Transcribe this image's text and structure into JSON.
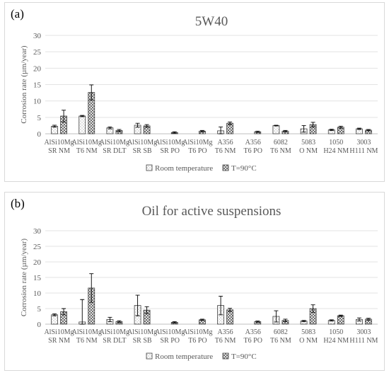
{
  "chart_data": [
    {
      "panel_label": "(a)",
      "type": "bar",
      "title": "5W40",
      "ylabel": "Corrosion rate (µm/year)",
      "ylim": [
        0,
        30
      ],
      "yticks": [
        0,
        5,
        10,
        15,
        20,
        25,
        30
      ],
      "grid": true,
      "legend_position": "bottom",
      "categories": [
        [
          "AlSi10Mg",
          "SR NM"
        ],
        [
          "AlSi10Mg",
          "T6 NM"
        ],
        [
          "AlSi10Mg",
          "SR DLT"
        ],
        [
          "AlSi10Mg",
          "SR SB"
        ],
        [
          "AlSi10Mg",
          "SR PO"
        ],
        [
          "AlSi10Mg",
          "T6 PO"
        ],
        [
          "A356",
          "T6 NM"
        ],
        [
          "A356",
          "T6 PO"
        ],
        [
          "6082",
          "T6 NM"
        ],
        [
          "5083",
          "O NM"
        ],
        [
          "1050",
          "H24 NM"
        ],
        [
          "3003",
          "H111 NM"
        ]
      ],
      "series": [
        {
          "name": "Room temperature",
          "pattern": "dots",
          "values": [
            2.3,
            5.4,
            1.8,
            2.6,
            0,
            0,
            0.9,
            0,
            2.5,
            1.5,
            1.2,
            1.5
          ],
          "errors": [
            0.3,
            0.2,
            0.3,
            0.6,
            0,
            0,
            1.2,
            0,
            0.1,
            1.0,
            0.2,
            0.2
          ]
        },
        {
          "name": "T=90°C",
          "pattern": "crosshatch",
          "values": [
            5.4,
            12.6,
            1.0,
            2.4,
            0.4,
            0.8,
            3.2,
            0.6,
            0.8,
            2.8,
            2.0,
            1.1
          ],
          "errors": [
            1.8,
            2.3,
            0.3,
            0.4,
            0.2,
            0.2,
            0.4,
            0.2,
            0.2,
            0.7,
            0.3,
            0.2
          ]
        }
      ]
    },
    {
      "panel_label": "(b)",
      "type": "bar",
      "title": "Oil for active suspensions",
      "ylabel": "Corrosion rate (µm/year)",
      "ylim": [
        0,
        30
      ],
      "yticks": [
        0,
        5,
        10,
        15,
        20,
        25,
        30
      ],
      "grid": true,
      "legend_position": "bottom",
      "categories": [
        [
          "AlSi10Mg",
          "SR NM"
        ],
        [
          "AlSi10Mg",
          "T6 NM"
        ],
        [
          "AlSi10Mg",
          "SR DLT"
        ],
        [
          "AlSi10Mg",
          "SR SB"
        ],
        [
          "AlSi10Mg",
          "SR PO"
        ],
        [
          "AlSi10Mg",
          "T6 PO"
        ],
        [
          "A356",
          "T6 NM"
        ],
        [
          "A356",
          "T6 PO"
        ],
        [
          "6082",
          "T6 NM"
        ],
        [
          "5083",
          "O NM"
        ],
        [
          "1050",
          "H24 NM"
        ],
        [
          "3003",
          "H111 NM"
        ]
      ],
      "series": [
        {
          "name": "Room temperature",
          "pattern": "dots",
          "values": [
            3.0,
            0.7,
            1.5,
            6.0,
            0,
            0,
            6.0,
            0,
            2.5,
            1.0,
            1.2,
            1.5
          ],
          "errors": [
            0.3,
            7.2,
            0.7,
            3.3,
            0,
            0,
            3.0,
            0,
            1.8,
            0.2,
            0.2,
            0.5
          ]
        },
        {
          "name": "T=90°C",
          "pattern": "crosshatch",
          "values": [
            4.0,
            11.6,
            0.8,
            4.5,
            0.6,
            1.4,
            4.6,
            0.8,
            1.2,
            5.0,
            2.7,
            1.6
          ],
          "errors": [
            1.0,
            4.6,
            0.3,
            1.1,
            0.2,
            0.2,
            0.5,
            0.2,
            0.4,
            1.2,
            0.2,
            0.3
          ]
        }
      ]
    }
  ]
}
